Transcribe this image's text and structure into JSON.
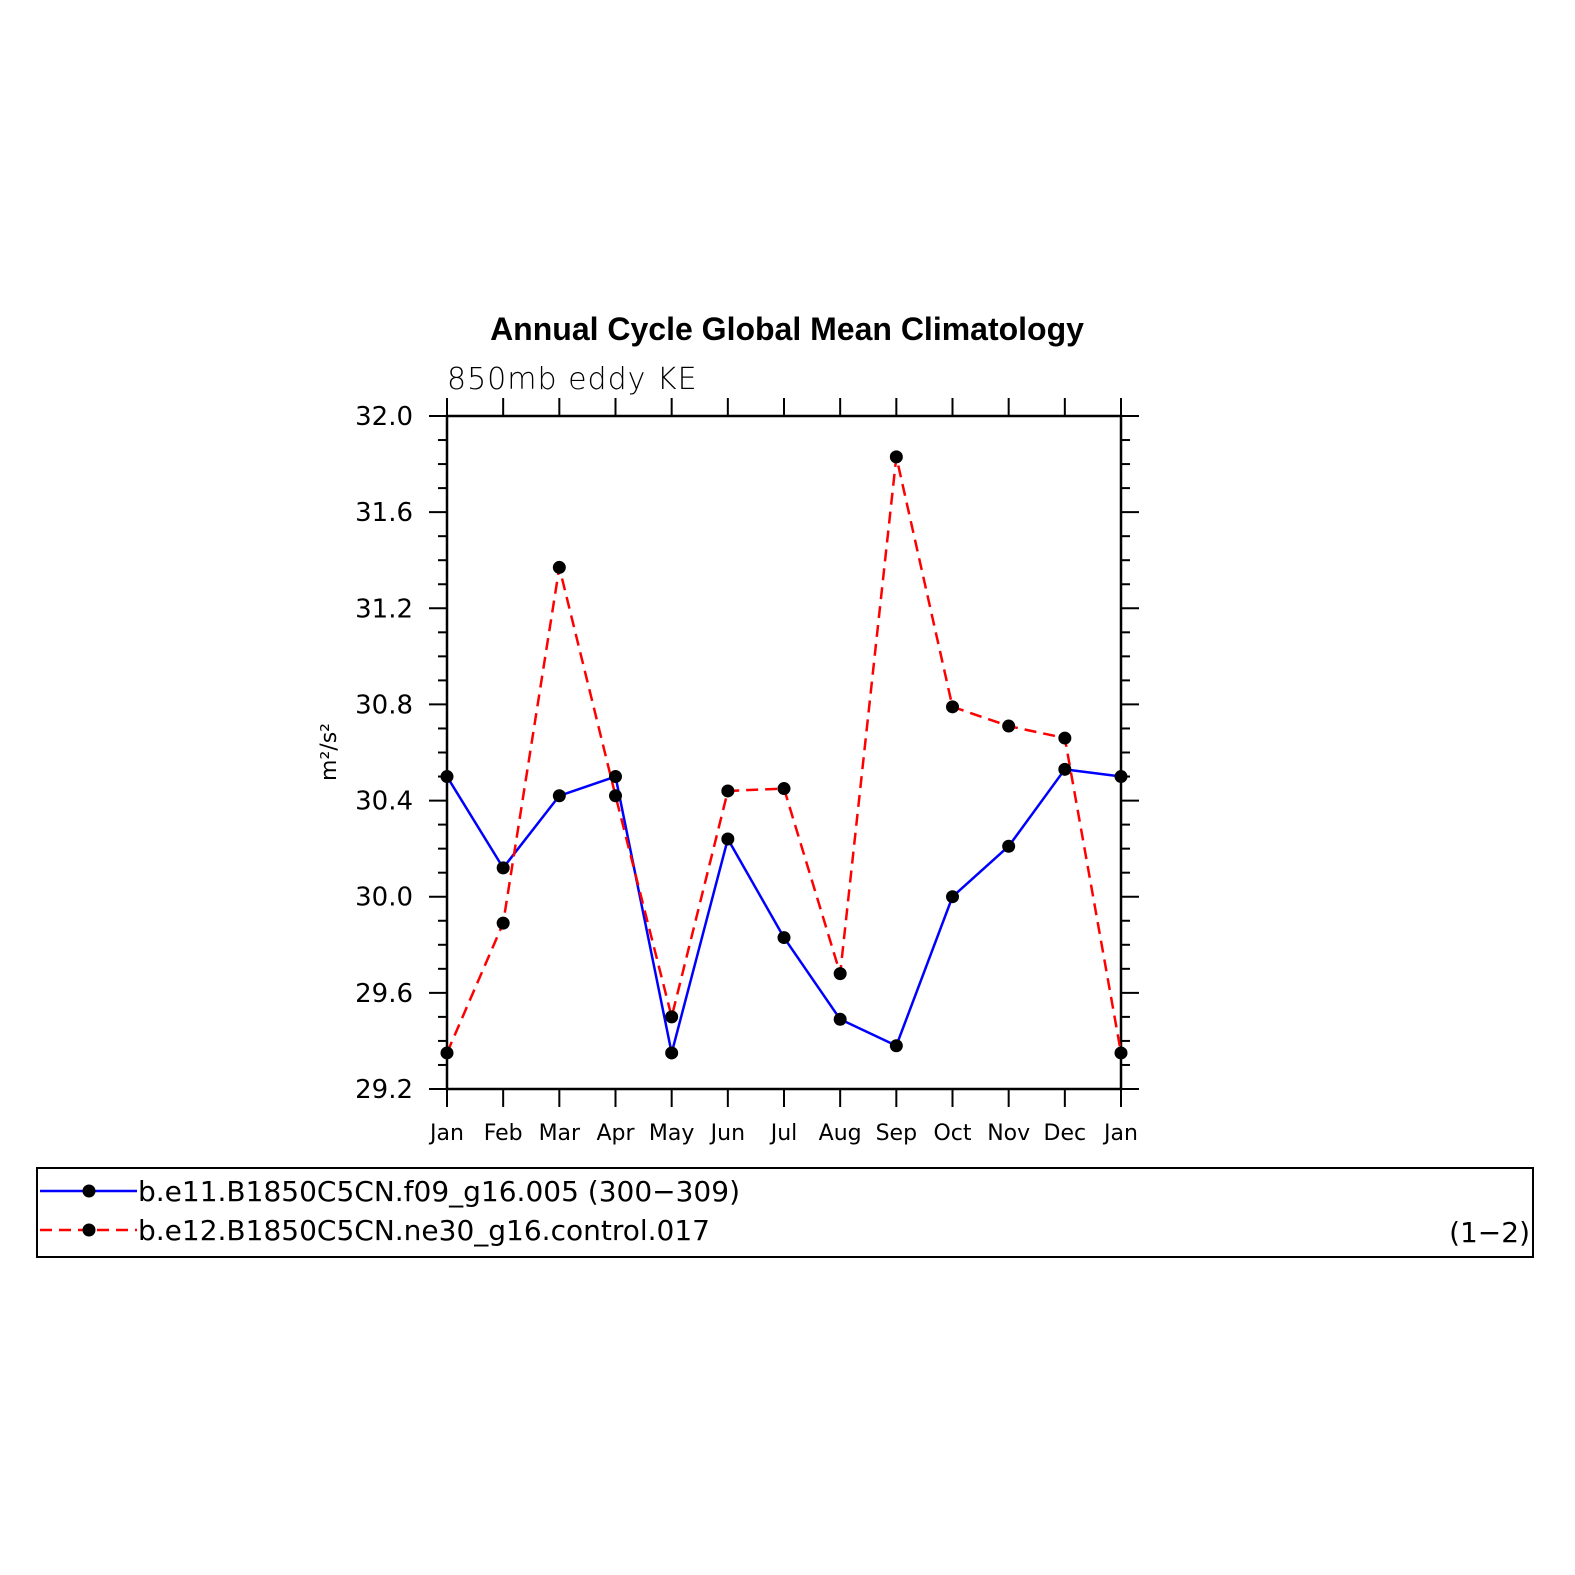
{
  "chart_data": {
    "type": "line",
    "title": "Annual Cycle Global Mean Climatology",
    "subtitle": "850mb eddy KE",
    "ylabel": "m²/s²",
    "xlabel": "",
    "categories": [
      "Jan",
      "Feb",
      "Mar",
      "Apr",
      "May",
      "Jun",
      "Jul",
      "Aug",
      "Sep",
      "Oct",
      "Nov",
      "Dec",
      "Jan"
    ],
    "ylim": [
      29.2,
      32.0
    ],
    "yticks": [
      "29.2",
      "29.6",
      "30.0",
      "30.4",
      "30.8",
      "31.2",
      "31.6",
      "32.0"
    ],
    "grid": false,
    "legend_placement": "bottom",
    "legend_tag": "(1−2)",
    "series": [
      {
        "name": "b.e11.B1850C5CN.f09_g16.005 (300−309)",
        "color": "#0000ff",
        "dash": "solid",
        "values": [
          30.5,
          30.12,
          30.42,
          30.5,
          29.35,
          30.24,
          29.83,
          29.49,
          29.38,
          30.0,
          30.21,
          30.53,
          30.5
        ]
      },
      {
        "name": "b.e12.B1850C5CN.ne30_g16.control.017",
        "color": "#ff0000",
        "dash": "dashed",
        "values": [
          29.35,
          29.89,
          31.37,
          30.42,
          29.5,
          30.44,
          30.45,
          29.68,
          31.83,
          30.79,
          30.71,
          30.66,
          29.35
        ]
      }
    ]
  }
}
